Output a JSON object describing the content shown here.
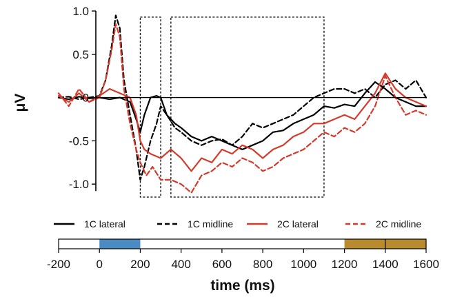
{
  "chart_data": {
    "type": "line",
    "ylabel": "μV",
    "xlabel": "time (ms)",
    "ylim": [
      -1.15,
      1.0
    ],
    "xlim": [
      -200,
      1600
    ],
    "y_ticks": [
      "1.0",
      "0.5",
      "0",
      "-0.5",
      "-1.0"
    ],
    "y_tick_values": [
      1.0,
      0.5,
      0,
      -0.5,
      -1.0
    ],
    "x_ticks": [
      "-200",
      "0",
      "200",
      "400",
      "600",
      "800",
      "1000",
      "1200",
      "1400",
      "1600"
    ],
    "x_tick_values": [
      -200,
      0,
      200,
      400,
      600,
      800,
      1000,
      1200,
      1400,
      1600
    ],
    "timeline_segments": [
      {
        "start": 0,
        "end": 200,
        "color": "#4a8bc4"
      },
      {
        "start": 1200,
        "end": 1600,
        "color": "#b78b2e"
      }
    ],
    "timeline_ticks": [
      1400
    ],
    "windows_ms": [
      [
        200,
        300
      ],
      [
        350,
        1100
      ]
    ],
    "grid": false,
    "legend_position": "bottom",
    "series": [
      {
        "name": "1C lateral",
        "color": "#000000",
        "dash": "solid",
        "x": [
          -200,
          -150,
          -100,
          -50,
          0,
          50,
          100,
          150,
          180,
          200,
          220,
          250,
          280,
          300,
          330,
          370,
          400,
          450,
          500,
          550,
          600,
          650,
          700,
          750,
          800,
          850,
          900,
          950,
          1000,
          1050,
          1100,
          1150,
          1200,
          1250,
          1300,
          1350,
          1400,
          1450,
          1500,
          1550,
          1600
        ],
        "y": [
          0.0,
          -0.02,
          0.01,
          -0.01,
          0.0,
          -0.02,
          0.0,
          -0.05,
          -0.25,
          -0.4,
          -0.2,
          0.0,
          0.02,
          0.0,
          -0.2,
          -0.3,
          -0.35,
          -0.45,
          -0.5,
          -0.45,
          -0.5,
          -0.55,
          -0.6,
          -0.55,
          -0.5,
          -0.4,
          -0.38,
          -0.3,
          -0.25,
          -0.2,
          -0.1,
          -0.12,
          -0.08,
          -0.1,
          0.05,
          0.18,
          0.1,
          0.0,
          -0.05,
          -0.1,
          -0.1
        ]
      },
      {
        "name": "1C midline",
        "color": "#000000",
        "dash": "dashed",
        "x": [
          -200,
          -150,
          -100,
          -50,
          0,
          30,
          60,
          80,
          100,
          120,
          150,
          180,
          200,
          220,
          250,
          280,
          300,
          330,
          370,
          400,
          450,
          500,
          550,
          600,
          650,
          700,
          750,
          800,
          850,
          900,
          950,
          1000,
          1050,
          1100,
          1150,
          1200,
          1250,
          1300,
          1350,
          1400,
          1450,
          1500,
          1550,
          1600
        ],
        "y": [
          0.0,
          0.01,
          -0.02,
          0.0,
          0.02,
          0.2,
          0.6,
          0.95,
          0.8,
          0.2,
          -0.2,
          -0.6,
          -0.95,
          -0.8,
          -0.5,
          -0.3,
          -0.1,
          -0.2,
          -0.35,
          -0.4,
          -0.5,
          -0.55,
          -0.5,
          -0.48,
          -0.55,
          -0.45,
          -0.3,
          -0.35,
          -0.3,
          -0.25,
          -0.2,
          -0.1,
          0.0,
          0.05,
          0.1,
          0.1,
          0.05,
          0.1,
          0.0,
          0.15,
          0.2,
          0.1,
          0.2,
          0.0
        ]
      },
      {
        "name": "2C lateral",
        "color": "#d33a2c",
        "dash": "solid",
        "x": [
          -200,
          -150,
          -100,
          -50,
          0,
          50,
          100,
          150,
          180,
          200,
          220,
          250,
          300,
          350,
          400,
          450,
          500,
          550,
          600,
          650,
          700,
          750,
          800,
          850,
          900,
          950,
          1000,
          1050,
          1100,
          1150,
          1200,
          1250,
          1300,
          1350,
          1400,
          1450,
          1500,
          1550,
          1600
        ],
        "y": [
          0.02,
          -0.05,
          0.05,
          -0.05,
          0.02,
          0.1,
          0.05,
          0.0,
          -0.2,
          -0.5,
          -0.6,
          -0.65,
          -0.7,
          -0.6,
          -0.7,
          -0.85,
          -0.7,
          -0.75,
          -0.6,
          -0.65,
          -0.55,
          -0.6,
          -0.7,
          -0.6,
          -0.55,
          -0.45,
          -0.4,
          -0.3,
          -0.3,
          -0.25,
          -0.2,
          -0.25,
          -0.1,
          0.05,
          0.28,
          0.1,
          0.0,
          -0.05,
          -0.1
        ]
      },
      {
        "name": "2C midline",
        "color": "#d33a2c",
        "dash": "dashed",
        "x": [
          -200,
          -150,
          -100,
          -50,
          0,
          30,
          60,
          80,
          100,
          120,
          150,
          180,
          200,
          230,
          260,
          300,
          350,
          400,
          450,
          500,
          550,
          600,
          650,
          700,
          750,
          800,
          850,
          900,
          950,
          1000,
          1050,
          1100,
          1150,
          1200,
          1250,
          1300,
          1350,
          1400,
          1450,
          1500,
          1550,
          1600
        ],
        "y": [
          0.05,
          -0.1,
          0.1,
          -0.05,
          0.0,
          0.2,
          0.55,
          0.85,
          0.7,
          0.1,
          -0.3,
          -0.6,
          -0.75,
          -0.9,
          -0.8,
          -0.95,
          -0.95,
          -1.0,
          -1.1,
          -0.9,
          -0.85,
          -0.75,
          -0.8,
          -0.7,
          -0.75,
          -0.85,
          -0.8,
          -0.7,
          -0.65,
          -0.6,
          -0.5,
          -0.4,
          -0.45,
          -0.35,
          -0.4,
          -0.3,
          -0.1,
          0.25,
          0.0,
          -0.2,
          -0.15,
          -0.2
        ]
      }
    ]
  }
}
